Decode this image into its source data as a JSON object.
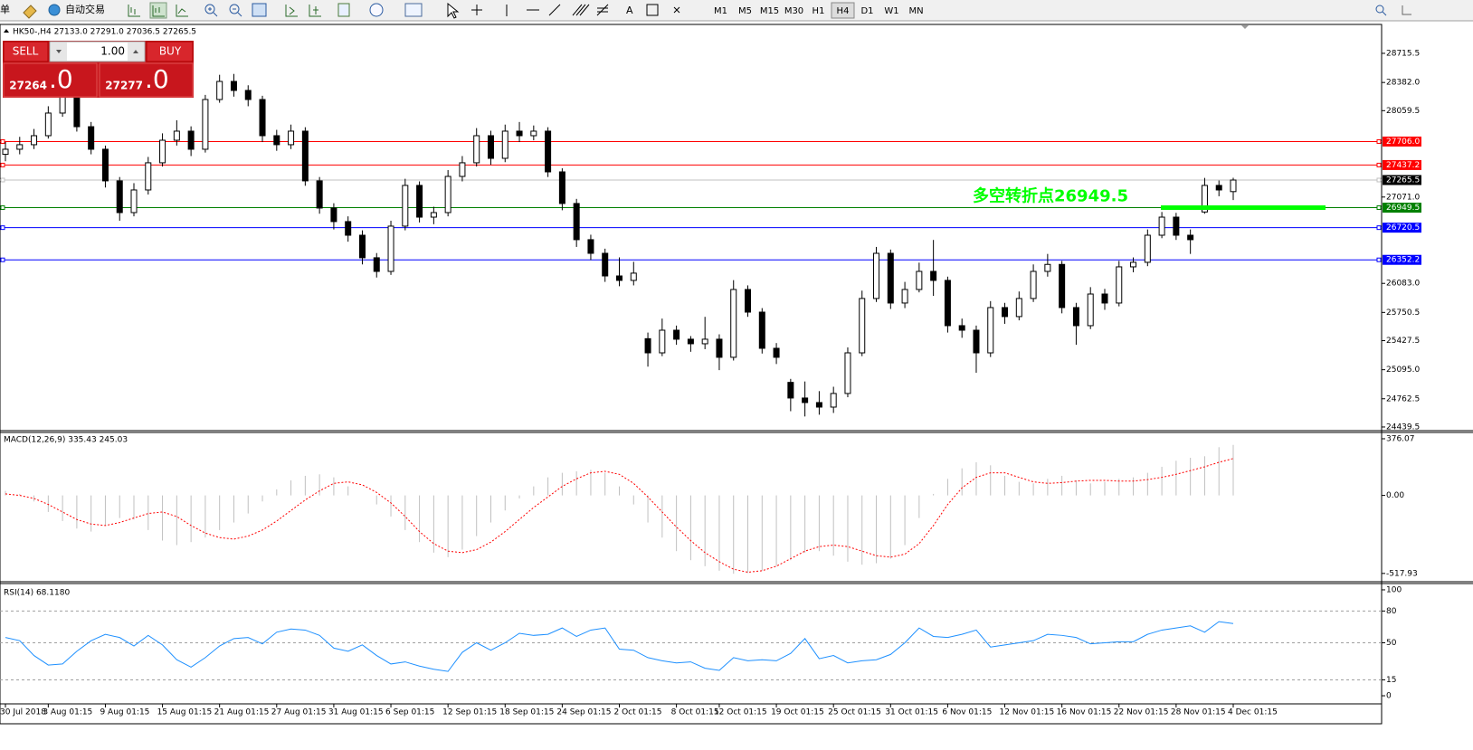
{
  "toolbar": {
    "menu_fragment": "单",
    "auto_trading": "自动交易",
    "text_tool": "A",
    "timeframes": [
      "M1",
      "M5",
      "M15",
      "M30",
      "H1",
      "H4",
      "D1",
      "W1",
      "MN"
    ],
    "active_timeframe": "H4"
  },
  "trade_panel": {
    "sell": "SELL",
    "lots": "1.00",
    "buy": "BUY",
    "bid_big": "27264",
    "bid_small": ".0",
    "ask_big": "27277",
    "ask_small": ".0"
  },
  "chart_data": [
    {
      "type": "candlestick",
      "title": "HK50-,H4 27133.0 27291.0 27036.5 27265.5",
      "categories": [
        "30 Jul 2018",
        null,
        null,
        "3 Aug 01:15",
        null,
        null,
        null,
        "9 Aug 01:15",
        null,
        null,
        null,
        "15 Aug 01:15",
        null,
        null,
        null,
        "21 Aug 01:15",
        null,
        null,
        null,
        "27 Aug 01:15",
        null,
        null,
        null,
        "31 Aug 01:15",
        null,
        null,
        null,
        "6 Sep 01:15",
        null,
        null,
        null,
        "12 Sep 01:15",
        null,
        null,
        null,
        "18 Sep 01:15",
        null,
        null,
        null,
        "24 Sep 01:15",
        null,
        null,
        null,
        "2 Oct 01:15",
        null,
        null,
        null,
        "8 Oct 01:15",
        null,
        null,
        "12 Oct 01:15",
        null,
        null,
        null,
        "19 Oct 01:15",
        null,
        null,
        null,
        "25 Oct 01:15",
        null,
        null,
        null,
        "31 Oct 01:15",
        null,
        null,
        null,
        "6 Nov 01:15",
        null,
        null,
        null,
        "12 Nov 01:15",
        null,
        null,
        null,
        "16 Nov 01:15",
        null,
        null,
        null,
        "22 Nov 01:15",
        null,
        null,
        null,
        "28 Nov 01:15",
        null,
        null,
        null,
        "4 Dec 01:15"
      ],
      "open": [
        27560,
        27618,
        27670,
        27773,
        28032,
        28291,
        27876,
        27618,
        27256,
        26893,
        27152,
        27463,
        27721,
        27825,
        27618,
        28187,
        28394,
        28291,
        28187,
        27773,
        27670,
        27825,
        27256,
        26945,
        26790,
        26634,
        26376,
        26220,
        26738,
        27204,
        26841,
        26893,
        27307,
        27463,
        27773,
        27514,
        27825,
        27773,
        27825,
        27359,
        26997,
        26583,
        26427,
        26168,
        26117,
        25450,
        25288,
        25547,
        25444,
        25392,
        25444,
        25237,
        26013,
        25754,
        25340,
        24950,
        24771,
        24719,
        24667,
        24823,
        25288,
        25910,
        26427,
        25858,
        26013,
        26220,
        26117,
        25599,
        25547,
        25288,
        25806,
        25703,
        25910,
        26220,
        26300,
        25806,
        25599,
        25961,
        25858,
        26272,
        26324,
        26634,
        26841,
        26634,
        26900,
        27204,
        27133
      ],
      "high": [
        27700,
        27760,
        27850,
        28110,
        28380,
        28330,
        27930,
        27660,
        27300,
        27230,
        27530,
        27800,
        27950,
        27880,
        28240,
        28470,
        28480,
        28350,
        28230,
        27840,
        27900,
        27870,
        27300,
        27000,
        26850,
        26690,
        26430,
        26800,
        27280,
        27250,
        26960,
        27380,
        27540,
        27860,
        27830,
        27900,
        27930,
        27890,
        27870,
        27400,
        27050,
        26640,
        26480,
        26380,
        26330,
        25520,
        25680,
        25600,
        25480,
        25700,
        25500,
        26120,
        26060,
        25800,
        25400,
        24990,
        24960,
        24850,
        24900,
        25350,
        26000,
        26500,
        26470,
        26100,
        26320,
        26580,
        26160,
        25680,
        25600,
        25880,
        25860,
        25990,
        26300,
        26420,
        26340,
        25860,
        26040,
        26020,
        26340,
        26380,
        26700,
        26900,
        26890,
        26700,
        27290,
        27260,
        27291
      ],
      "low": [
        27480,
        27560,
        27620,
        27740,
        27990,
        27820,
        27560,
        27180,
        26800,
        26850,
        27100,
        27420,
        27660,
        27540,
        27580,
        28150,
        28220,
        28110,
        27700,
        27600,
        27620,
        27200,
        26880,
        26700,
        26560,
        26300,
        26150,
        26180,
        26690,
        26780,
        26760,
        26850,
        27250,
        27420,
        27440,
        27470,
        27700,
        27720,
        27300,
        26920,
        26500,
        26350,
        26100,
        26050,
        26060,
        25130,
        25250,
        25380,
        25300,
        25330,
        25090,
        25200,
        25700,
        25280,
        25160,
        24620,
        24560,
        24580,
        24600,
        24780,
        25250,
        25870,
        25790,
        25800,
        25980,
        25940,
        25520,
        25460,
        25060,
        25240,
        25620,
        25660,
        25870,
        26160,
        25740,
        25380,
        25560,
        25780,
        25820,
        26210,
        26280,
        26600,
        26580,
        26420,
        26880,
        27080,
        27036.5
      ],
      "close": [
        27618,
        27670,
        27773,
        28032,
        28291,
        27876,
        27618,
        27256,
        26893,
        27152,
        27463,
        27721,
        27825,
        27618,
        28187,
        28394,
        28291,
        28187,
        27773,
        27670,
        27825,
        27256,
        26945,
        26790,
        26634,
        26376,
        26220,
        26738,
        27204,
        26841,
        26893,
        27307,
        27463,
        27773,
        27514,
        27825,
        27773,
        27825,
        27359,
        26997,
        26583,
        26427,
        26168,
        26117,
        26200,
        25288,
        25547,
        25444,
        25392,
        25444,
        25237,
        26013,
        25754,
        25340,
        25237,
        24771,
        24719,
        24667,
        24823,
        25288,
        25910,
        26427,
        25858,
        26013,
        26220,
        26117,
        25599,
        25547,
        25288,
        25806,
        25703,
        25910,
        26220,
        26300,
        25806,
        25599,
        25961,
        25858,
        26272,
        26324,
        26634,
        26841,
        26634,
        26583,
        27204,
        27152,
        27265.5
      ],
      "up_color": "#ffffff",
      "down_color": "#000000",
      "ylim": [
        24408,
        29036
      ],
      "yticks": [
        28715.5,
        {
          "value": 28382,
          "label": "28382.0"
        },
        28059.5,
        {
          "value": 27071,
          "label": "27071.0"
        },
        {
          "value": 26083,
          "label": "26083.0"
        },
        25750.5,
        25427.5,
        {
          "value": 25095,
          "label": "25095.0"
        },
        24762.5,
        24439.5
      ],
      "lines": [
        {
          "value": 27706,
          "label": "27706.0",
          "color": "#ff0000",
          "label_bg": "#ff0000"
        },
        {
          "value": 27437.2,
          "label": "27437.2",
          "color": "#ff0000",
          "label_bg": "#ff0000"
        },
        {
          "value": 27265.5,
          "label": "27265.5",
          "color": "#c0c0c0",
          "label_bg": "#000000"
        },
        {
          "value": 26949.5,
          "label": "26949.5",
          "color": "#008000",
          "label_bg": "#008000"
        },
        {
          "value": 26720.5,
          "label": "26720.5",
          "color": "#0000ff",
          "label_bg": "#0000ff"
        },
        {
          "value": 26352.2,
          "label": "26352.2",
          "color": "#0000ff",
          "label_bg": "#0000ff"
        }
      ],
      "annotation": {
        "text": "多空转折点26949.5",
        "value": 26949.5,
        "color": "#00ff00"
      }
    },
    {
      "type": "macd",
      "title": "MACD(12,26,9) 335.43 245.03",
      "histogram": [
        30,
        10,
        -40,
        -110,
        -170,
        -220,
        -240,
        -200,
        -150,
        -160,
        -230,
        -300,
        -330,
        -310,
        -280,
        -230,
        -180,
        -120,
        -40,
        40,
        100,
        130,
        140,
        120,
        60,
        0,
        -60,
        -140,
        -230,
        -310,
        -380,
        -410,
        -360,
        -270,
        -180,
        -100,
        -20,
        60,
        120,
        150,
        160,
        170,
        150,
        60,
        -60,
        -180,
        -280,
        -370,
        -430,
        -470,
        -500,
        -520,
        -515,
        -500,
        -470,
        -430,
        -380,
        -370,
        -400,
        -440,
        -460,
        -450,
        -420,
        -330,
        -150,
        10,
        110,
        180,
        220,
        200,
        130,
        90,
        80,
        110,
        130,
        100,
        80,
        90,
        110,
        120,
        150,
        190,
        230,
        250,
        260,
        320,
        335.43
      ],
      "signal": [
        10,
        0,
        -20,
        -60,
        -110,
        -160,
        -190,
        -200,
        -180,
        -150,
        -120,
        -110,
        -140,
        -200,
        -250,
        -280,
        -290,
        -270,
        -230,
        -170,
        -100,
        -30,
        30,
        80,
        90,
        70,
        20,
        -50,
        -140,
        -240,
        -320,
        -370,
        -380,
        -360,
        -310,
        -240,
        -160,
        -80,
        -10,
        60,
        110,
        150,
        160,
        140,
        80,
        -10,
        -110,
        -210,
        -300,
        -380,
        -440,
        -490,
        -510,
        -500,
        -470,
        -420,
        -370,
        -340,
        -330,
        -340,
        -370,
        -400,
        -410,
        -390,
        -320,
        -200,
        -60,
        50,
        120,
        150,
        150,
        120,
        90,
        80,
        85,
        95,
        100,
        100,
        95,
        95,
        105,
        120,
        140,
        165,
        190,
        220,
        245.03
      ],
      "histogram_color": "#c0c0c0",
      "signal_color": "#ff0000",
      "ylim": [
        -567,
        412
      ],
      "yticks": [
        376.07,
        {
          "value": 0,
          "label": "0.00"
        },
        -517.93
      ]
    },
    {
      "type": "line",
      "title": "RSI(14) 68.1180",
      "values": [
        55,
        52,
        38,
        29,
        30,
        42,
        52,
        58,
        55,
        47,
        57,
        48,
        34,
        27,
        36,
        47,
        54,
        55,
        49,
        60,
        63,
        62,
        57,
        45,
        42,
        48,
        38,
        30,
        32,
        28,
        25,
        23,
        41,
        50,
        43,
        50,
        59,
        57,
        58,
        64,
        56,
        62,
        64,
        44,
        43,
        36,
        33,
        31,
        32,
        26,
        24,
        36,
        33,
        34,
        33,
        40,
        54,
        35,
        38,
        31,
        33,
        34,
        39,
        50,
        64,
        56,
        55,
        58,
        62,
        46,
        48,
        50,
        52,
        58,
        57,
        55,
        49,
        50,
        51,
        51,
        58,
        62,
        64,
        66,
        60,
        70,
        68.118
      ],
      "color": "#1e90ff",
      "ylim": [
        -6.8,
        105.1
      ],
      "yticks": [
        100,
        80,
        50,
        15,
        0
      ],
      "levels": [
        80,
        50,
        15
      ]
    }
  ]
}
